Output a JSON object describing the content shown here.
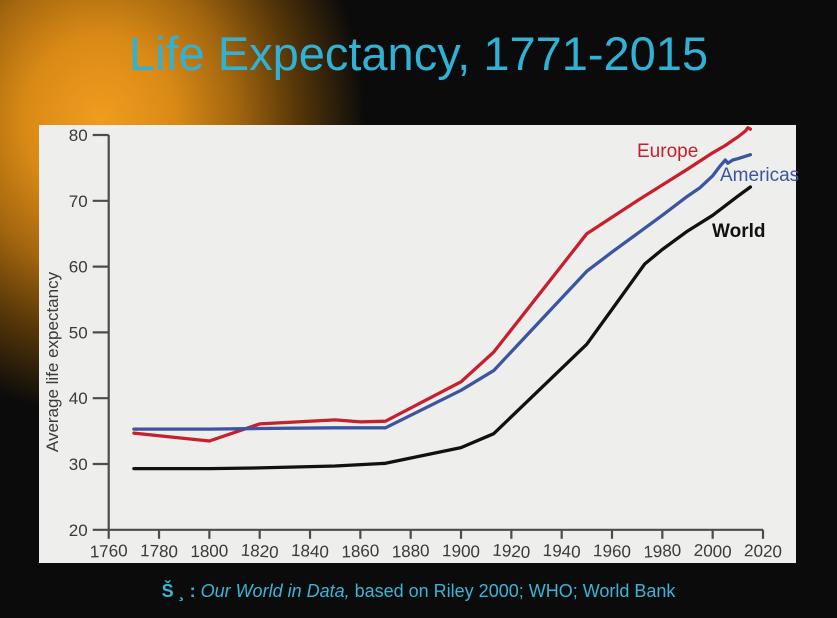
{
  "title": "Life Expectancy, 1771-2015",
  "colors": {
    "background": "#0b0b0b",
    "glow_orange": "#f09c1e",
    "title_text": "#31b2d5",
    "source_text": "#3cb4d7",
    "panel_background": "#eeeeec",
    "axis": "#4c4c4a",
    "tick_label": "#3a3a3a",
    "europe_red": "#c6202e",
    "americas_blue": "#3c55a0",
    "world_black": "#111111"
  },
  "source": {
    "prefix": "Š ¸ :",
    "work": " Our World in Data,",
    "rest": " based on Riley 2000; WHO; World Bank"
  },
  "chart_data": {
    "type": "line",
    "title": "Life Expectancy, 1771-2015",
    "xlabel": "",
    "ylabel": "Average life expectancy",
    "xlim": [
      1760,
      2020
    ],
    "ylim": [
      20,
      80
    ],
    "x_ticks": [
      1760,
      1780,
      1800,
      1820,
      1840,
      1860,
      1880,
      1900,
      1920,
      1940,
      1960,
      1980,
      2000,
      2020
    ],
    "y_ticks": [
      20,
      30,
      40,
      50,
      60,
      70,
      80
    ],
    "grid": false,
    "legend_position": "inline-labels-right",
    "series": [
      {
        "name": "Europe",
        "color": "#c6202e",
        "points": [
          [
            1770,
            34.7
          ],
          [
            1800,
            33.5
          ],
          [
            1820,
            36.1
          ],
          [
            1850,
            36.7
          ],
          [
            1860,
            36.4
          ],
          [
            1870,
            36.5
          ],
          [
            1900,
            42.5
          ],
          [
            1913,
            47.0
          ],
          [
            1950,
            65.0
          ],
          [
            1960,
            67.5
          ],
          [
            1970,
            70.0
          ],
          [
            1980,
            72.4
          ],
          [
            1990,
            74.8
          ],
          [
            2000,
            77.3
          ],
          [
            2005,
            78.4
          ],
          [
            2008,
            79.2
          ],
          [
            2010,
            79.7
          ],
          [
            2012,
            80.3
          ],
          [
            2013,
            80.6
          ],
          [
            2014,
            81.1
          ],
          [
            2015,
            80.9
          ]
        ]
      },
      {
        "name": "Americas",
        "color": "#3c55a0",
        "points": [
          [
            1770,
            35.3
          ],
          [
            1800,
            35.3
          ],
          [
            1820,
            35.4
          ],
          [
            1850,
            35.5
          ],
          [
            1870,
            35.5
          ],
          [
            1900,
            41.2
          ],
          [
            1913,
            44.2
          ],
          [
            1950,
            59.3
          ],
          [
            1960,
            62.2
          ],
          [
            1970,
            65.0
          ],
          [
            1980,
            67.8
          ],
          [
            1990,
            70.7
          ],
          [
            1995,
            72.0
          ],
          [
            2000,
            73.8
          ],
          [
            2003,
            75.3
          ],
          [
            2005,
            76.2
          ],
          [
            2006,
            75.7
          ],
          [
            2008,
            76.2
          ],
          [
            2010,
            76.4
          ],
          [
            2015,
            77.0
          ]
        ]
      },
      {
        "name": "World",
        "color": "#111111",
        "points": [
          [
            1770,
            29.3
          ],
          [
            1800,
            29.3
          ],
          [
            1820,
            29.4
          ],
          [
            1850,
            29.7
          ],
          [
            1870,
            30.1
          ],
          [
            1900,
            32.5
          ],
          [
            1913,
            34.6
          ],
          [
            1950,
            48.2
          ],
          [
            1960,
            53.5
          ],
          [
            1973,
            60.4
          ],
          [
            1980,
            62.6
          ],
          [
            1990,
            65.4
          ],
          [
            2000,
            67.8
          ],
          [
            2010,
            70.7
          ],
          [
            2015,
            72.1
          ]
        ]
      }
    ]
  }
}
